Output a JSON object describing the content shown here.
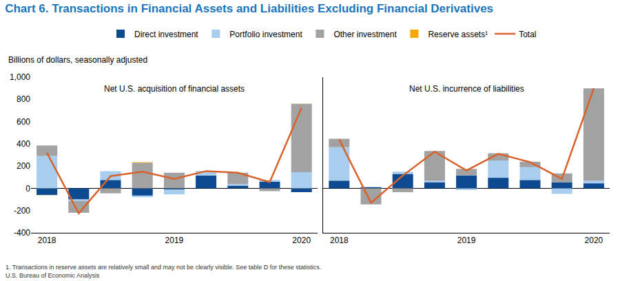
{
  "title": "Chart 6. Transactions in Financial Assets and Liabilities Excluding Financial Derivatives",
  "ylabel": "Billions of dollars, seasonally adjusted",
  "notes": [
    "1. Transactions in reserve assets are relatively small and may not be clearly visible. See table D for these statistics.",
    "U.S. Bureau of Economic Analysis"
  ],
  "chart_data": [
    {
      "type": "bar",
      "title": "Net U.S. acquisition of financial assets",
      "stacked": true,
      "grid": false,
      "legend": "top",
      "categories": [
        "2018",
        null,
        null,
        null,
        "2019",
        null,
        null,
        null,
        "2020"
      ],
      "ylim": [
        -400,
        1000
      ],
      "yticks": [
        -400,
        -200,
        0,
        200,
        400,
        600,
        800,
        {
          "value": 1000,
          "label": "1,000"
        }
      ],
      "series": [
        {
          "name": "Direct investment",
          "color": "#0d4a8f",
          "type": "bar",
          "values": [
            -60,
            -100,
            75,
            -65,
            -10,
            115,
            25,
            60,
            -35
          ]
        },
        {
          "name": "Portfolio investment",
          "color": "#a8cdee",
          "type": "bar",
          "values": [
            290,
            -15,
            80,
            -15,
            -45,
            35,
            15,
            15,
            145
          ]
        },
        {
          "name": "Other investment",
          "color": "#a2a2a2",
          "type": "bar",
          "values": [
            95,
            -105,
            -45,
            230,
            140,
            5,
            100,
            -25,
            615
          ]
        },
        {
          "name": "Reserve assets¹",
          "color": "#f5a800",
          "type": "bar",
          "values": [
            -1,
            0,
            0,
            5,
            0,
            0,
            0,
            0,
            1
          ]
        },
        {
          "name": "Total",
          "color": "#d9622b",
          "type": "line",
          "values": [
            320,
            -225,
            110,
            150,
            85,
            155,
            140,
            55,
            725
          ]
        }
      ]
    },
    {
      "type": "bar",
      "title": "Net U.S. incurrence of liabilities",
      "stacked": true,
      "grid": false,
      "tick_labels": "x",
      "categories": [
        "2018",
        null,
        null,
        null,
        "2019",
        null,
        null,
        null,
        "2020"
      ],
      "ylim": [
        -400,
        1000
      ],
      "series": [
        {
          "name": "Direct investment",
          "color": "#0d4a8f",
          "type": "bar",
          "values": [
            70,
            10,
            130,
            55,
            115,
            95,
            75,
            55,
            45
          ]
        },
        {
          "name": "Portfolio investment",
          "color": "#a8cdee",
          "type": "bar",
          "values": [
            300,
            5,
            20,
            15,
            -15,
            155,
            115,
            -50,
            25
          ]
        },
        {
          "name": "Other investment",
          "color": "#a2a2a2",
          "type": "bar",
          "values": [
            75,
            -145,
            -35,
            265,
            60,
            65,
            50,
            80,
            830
          ]
        },
        {
          "name": "Total",
          "color": "#d9622b",
          "type": "line",
          "values": [
            440,
            -130,
            115,
            330,
            160,
            310,
            235,
            85,
            900
          ]
        }
      ]
    }
  ]
}
